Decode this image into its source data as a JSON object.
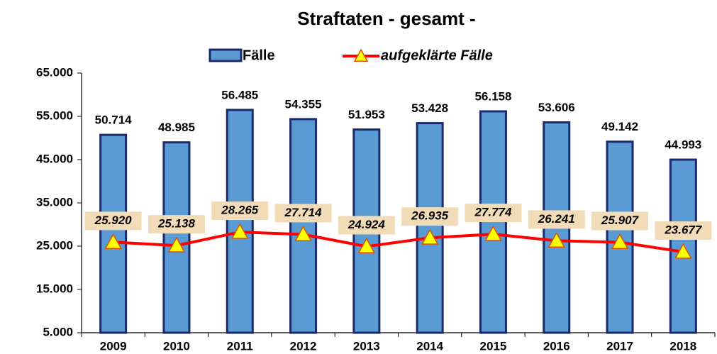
{
  "chart_data": {
    "type": "combo",
    "title": "Straftaten - gesamt -",
    "categories": [
      "2009",
      "2010",
      "2011",
      "2012",
      "2013",
      "2014",
      "2015",
      "2016",
      "2017",
      "2018"
    ],
    "series": [
      {
        "name": "Fälle",
        "type": "bar",
        "color": "#5b9bd5",
        "values": [
          50714,
          48985,
          56485,
          54355,
          51953,
          53428,
          56158,
          53606,
          49142,
          44993
        ],
        "value_labels": [
          "50.714",
          "48.985",
          "56.485",
          "54.355",
          "51.953",
          "53.428",
          "56.158",
          "53.606",
          "49.142",
          "44.993"
        ]
      },
      {
        "name": "aufgeklärte Fälle",
        "type": "line",
        "color": "#ff0000",
        "values": [
          25920,
          25138,
          28265,
          27714,
          24924,
          26935,
          27774,
          26241,
          25907,
          23677
        ],
        "value_labels": [
          "25.920",
          "25.138",
          "28.265",
          "27.714",
          "24.924",
          "26.935",
          "27.774",
          "26.241",
          "25.907",
          "23.677"
        ]
      }
    ],
    "ylim": [
      5000,
      65000
    ],
    "yticks": [
      {
        "value": 5000,
        "label": "5.000"
      },
      {
        "value": 15000,
        "label": "15.000"
      },
      {
        "value": 25000,
        "label": "25.000"
      },
      {
        "value": 35000,
        "label": "35.000"
      },
      {
        "value": 45000,
        "label": "45.000"
      },
      {
        "value": 55000,
        "label": "55.000"
      },
      {
        "value": 65000,
        "label": "65.000"
      }
    ],
    "legend": "top",
    "grid": false
  }
}
